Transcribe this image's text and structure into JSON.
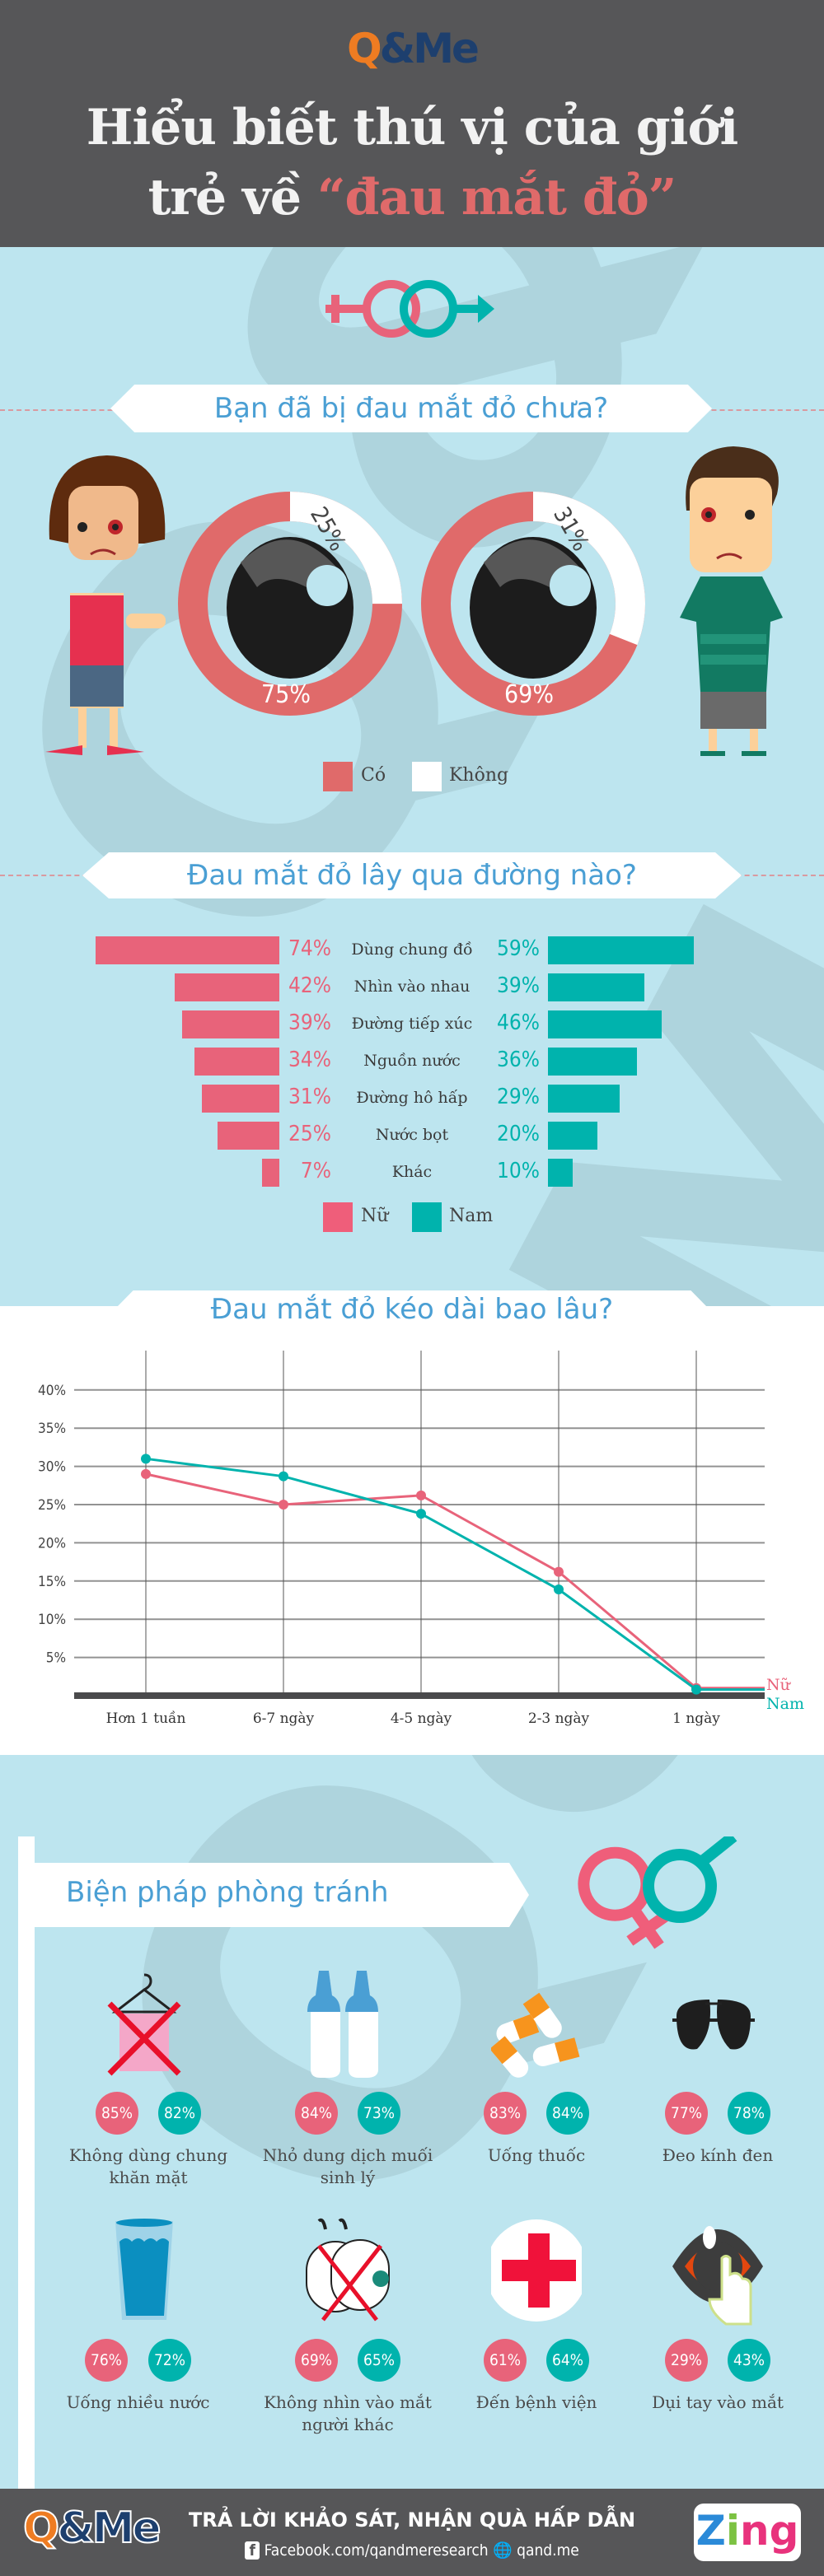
{
  "header": {
    "logo": "Q&Me",
    "title_line1": "Hiểu biết thú vị của giới",
    "title_line2_prefix": "trẻ về ",
    "title_highlight": "“đau mắt đỏ”"
  },
  "watermark": "Q&Me",
  "colors": {
    "header": "#565658",
    "background": "#bde5ef",
    "female": "#e8637a",
    "male": "#00b3ad",
    "donut_yes": "#e06a6a",
    "title_blue": "#4a9fd4"
  },
  "section1": {
    "title": "Bạn đã bị đau mắt đỏ chưa?",
    "chart_data": {
      "type": "pie",
      "series": [
        {
          "name": "Nữ",
          "values": {
            "Có": 75,
            "Không": 25
          },
          "labels": [
            "75%",
            "25%"
          ]
        },
        {
          "name": "Nam",
          "values": {
            "Có": 69,
            "Không": 31
          },
          "labels": [
            "69%",
            "31%"
          ]
        }
      ],
      "legend": [
        "Có",
        "Không"
      ]
    }
  },
  "section2": {
    "title": "Đau mắt đỏ lây qua đường nào?",
    "chart_data": {
      "type": "bar",
      "orientation": "horizontal-mirrored",
      "categories": [
        "Dùng chung đồ",
        "Nhìn vào nhau",
        "Đường tiếp xúc",
        "Nguồn nước",
        "Đường hô hấp",
        "Nước bọt",
        "Khác"
      ],
      "series": [
        {
          "name": "Nữ",
          "values": [
            74,
            42,
            39,
            34,
            31,
            25,
            7
          ]
        },
        {
          "name": "Nam",
          "values": [
            59,
            39,
            46,
            36,
            29,
            20,
            10
          ]
        }
      ],
      "unit": "%",
      "legend": [
        "Nữ",
        "Nam"
      ]
    }
  },
  "section3": {
    "title": "Đau mắt đỏ kéo dài bao lâu?",
    "chart_data": {
      "type": "line",
      "categories": [
        "Hơn 1 tuần",
        "6-7 ngày",
        "4-5 ngày",
        "2-3 ngày",
        "1 ngày"
      ],
      "series": [
        {
          "name": "Nữ",
          "values": [
            29,
            25,
            26.2,
            16.2,
            1
          ]
        },
        {
          "name": "Nam",
          "values": [
            31,
            28.7,
            23.8,
            13.9,
            0.8
          ]
        }
      ],
      "yticks": [
        "5%",
        "10%",
        "15%",
        "20%",
        "25%",
        "30%",
        "35%",
        "40%"
      ],
      "ylim": [
        0,
        40
      ],
      "grid": true,
      "legend": "end-of-line labels"
    }
  },
  "section4": {
    "title": "Biện pháp phòng tránh",
    "items": [
      {
        "label": "Không dùng chung khăn mặt",
        "female": "85%",
        "male": "82%",
        "icon": "towel-crossed-icon"
      },
      {
        "label": "Nhỏ dung dịch muối sinh lý",
        "female": "84%",
        "male": "73%",
        "icon": "saline-bottles-icon"
      },
      {
        "label": "Uống thuốc",
        "female": "83%",
        "male": "84%",
        "icon": "pills-icon"
      },
      {
        "label": "Đeo kính đen",
        "female": "77%",
        "male": "78%",
        "icon": "sunglasses-icon"
      },
      {
        "label": "Uống nhiều nước",
        "female": "76%",
        "male": "72%",
        "icon": "water-glass-icon"
      },
      {
        "label": "Không nhìn vào mắt người khác",
        "female": "69%",
        "male": "65%",
        "icon": "eyes-crossed-icon"
      },
      {
        "label": "Đến bệnh viện",
        "female": "61%",
        "male": "64%",
        "icon": "red-cross-icon"
      },
      {
        "label": "Dụi tay vào mắt",
        "female": "29%",
        "male": "43%",
        "icon": "eye-rub-icon"
      }
    ]
  },
  "footer": {
    "logo": "Q&Me",
    "slogan": "TRẢ LỜI KHẢO SÁT, NHẬN QUÀ HẤP DẪN",
    "facebook": "Facebook.com/qandmeresearch",
    "website": "qand.me",
    "partner_logo": "Zing"
  }
}
